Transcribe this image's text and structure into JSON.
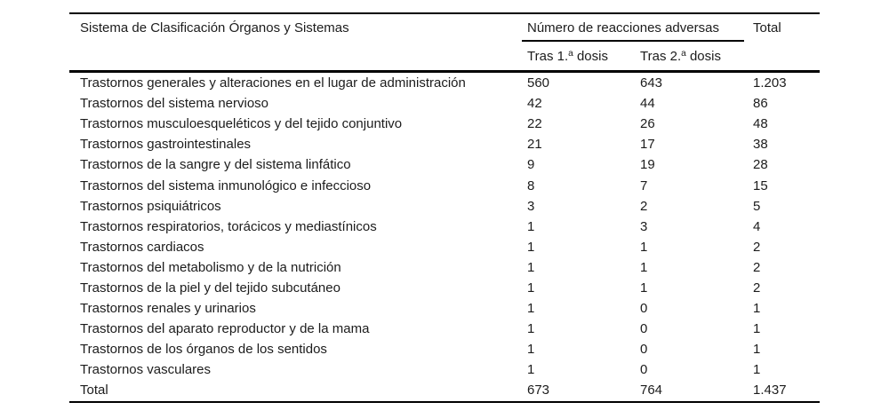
{
  "table": {
    "header": {
      "system": "Sistema de Clasificación Órganos y Sistemas",
      "group": "Número de reacciones adversas",
      "total": "Total",
      "dose1": {
        "prefix": "Tras 1.",
        "sup": "a",
        "suffix": " dosis"
      },
      "dose2": {
        "prefix": "Tras 2.",
        "sup": "a",
        "suffix": " dosis"
      }
    },
    "rows": [
      {
        "system": "Trastornos generales y alteraciones en el lugar de administración",
        "dose1": "560",
        "dose2": "643",
        "total": "1.203"
      },
      {
        "system": "Trastornos del sistema nervioso",
        "dose1": "42",
        "dose2": "44",
        "total": "86"
      },
      {
        "system": "Trastornos musculoesqueléticos y del tejido conjuntivo",
        "dose1": "22",
        "dose2": "26",
        "total": "48"
      },
      {
        "system": "Trastornos gastrointestinales",
        "dose1": "21",
        "dose2": "17",
        "total": "38"
      },
      {
        "system": "Trastornos de la sangre y del sistema linfático",
        "dose1": "9",
        "dose2": "19",
        "total": "28"
      },
      {
        "system": "Trastornos del sistema inmunológico e infeccioso",
        "dose1": "8",
        "dose2": "7",
        "total": "15"
      },
      {
        "system": "Trastornos psiquiátricos",
        "dose1": "3",
        "dose2": "2",
        "total": "5"
      },
      {
        "system": "Trastornos respiratorios, torácicos y mediastínicos",
        "dose1": "1",
        "dose2": "3",
        "total": "4"
      },
      {
        "system": "Trastornos cardiacos",
        "dose1": "1",
        "dose2": "1",
        "total": "2"
      },
      {
        "system": "Trastornos del metabolismo y de la nutrición",
        "dose1": "1",
        "dose2": "1",
        "total": "2"
      },
      {
        "system": "Trastornos de la piel y del tejido subcutáneo",
        "dose1": "1",
        "dose2": "1",
        "total": "2"
      },
      {
        "system": "Trastornos renales y urinarios",
        "dose1": "1",
        "dose2": "0",
        "total": "1"
      },
      {
        "system": "Trastornos del aparato reproductor y de la mama",
        "dose1": "1",
        "dose2": "0",
        "total": "1"
      },
      {
        "system": "Trastornos de los órganos de los sentidos",
        "dose1": "1",
        "dose2": "0",
        "total": "1"
      },
      {
        "system": "Trastornos vasculares",
        "dose1": "1",
        "dose2": "0",
        "total": "1"
      },
      {
        "system": "Total",
        "dose1": "673",
        "dose2": "764",
        "total": "1.437"
      }
    ],
    "colors": {
      "text": "#1c1c1c",
      "rule": "#000000",
      "background": "#ffffff"
    }
  }
}
